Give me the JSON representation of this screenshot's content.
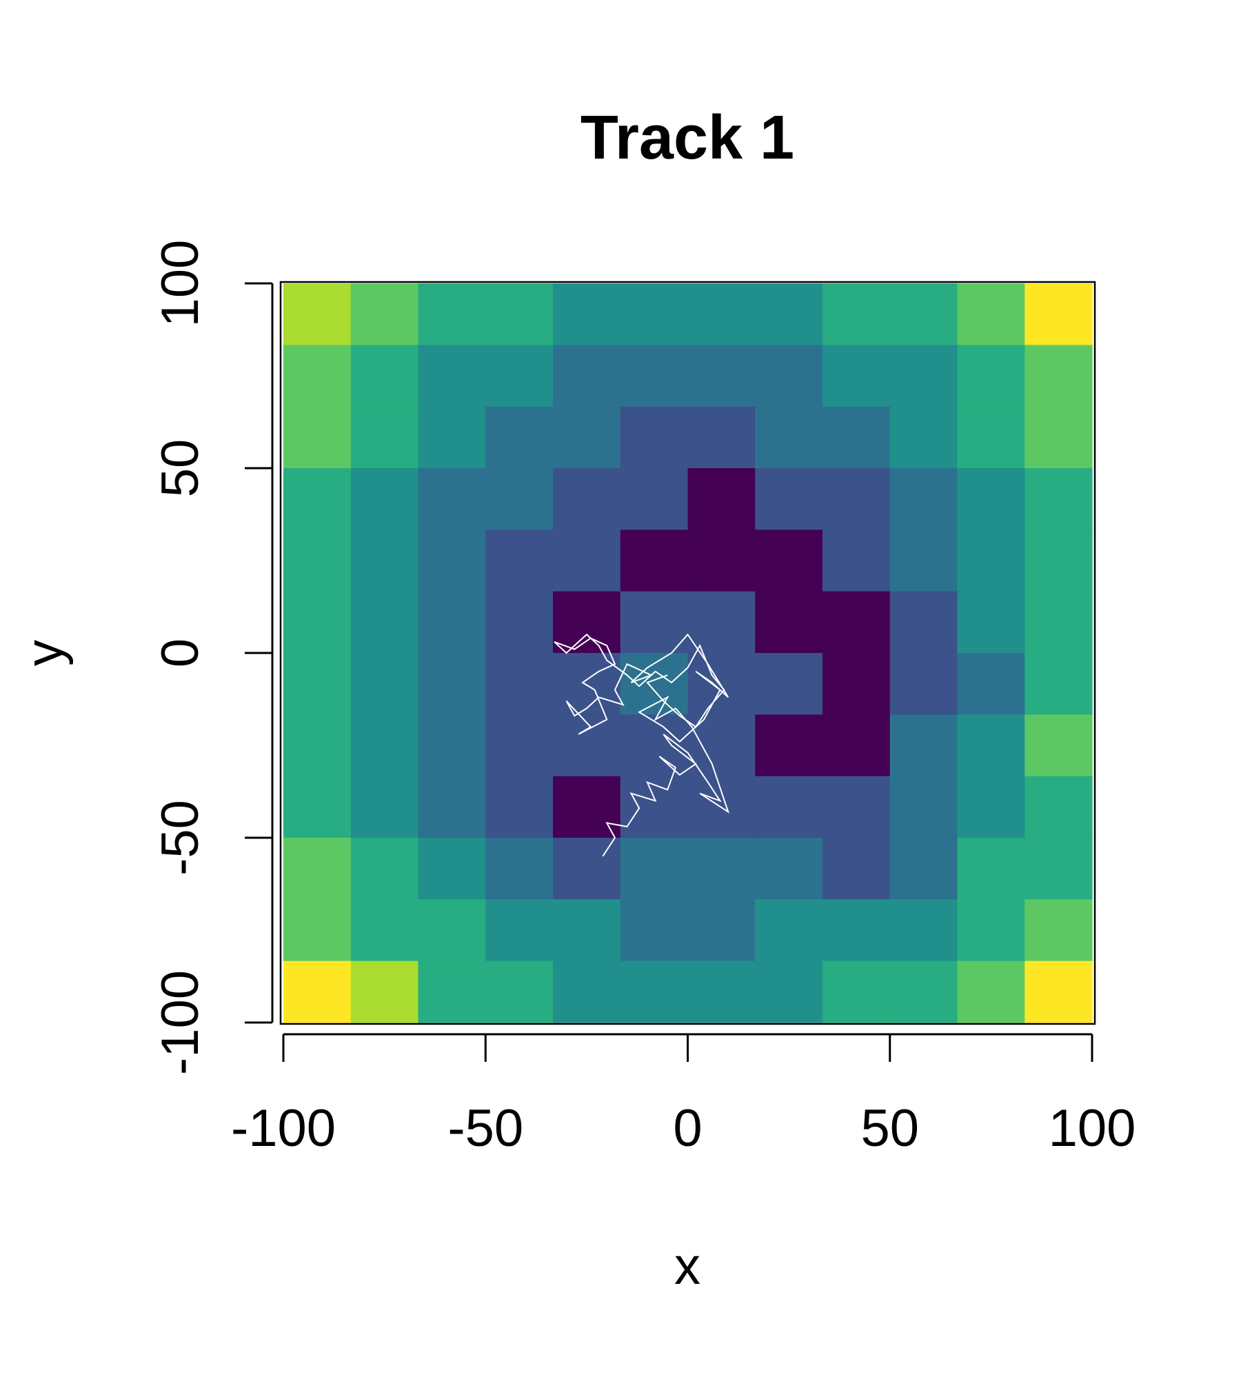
{
  "chart_data": {
    "type": "raster-track",
    "title": "Track 1",
    "x_label": "x",
    "y_label": "y",
    "xlim": [
      -100,
      100
    ],
    "ylim": [
      -100,
      100
    ],
    "xticks": [
      -100,
      -50,
      0,
      50,
      100
    ],
    "yticks": [
      -100,
      -50,
      0,
      50,
      100
    ],
    "colors": [
      "#440154",
      "#3b528b",
      "#2c728e",
      "#21908d",
      "#27ad81",
      "#5dc863",
      "#aadc32",
      "#fde725"
    ],
    "z": [
      [
        6,
        5,
        4,
        4,
        3,
        3,
        3,
        3,
        4,
        4,
        5,
        7
      ],
      [
        5,
        4,
        3,
        3,
        2,
        2,
        2,
        2,
        3,
        3,
        4,
        5
      ],
      [
        5,
        4,
        3,
        2,
        2,
        1,
        1,
        2,
        2,
        3,
        4,
        5
      ],
      [
        4,
        3,
        2,
        2,
        1,
        1,
        0,
        1,
        1,
        2,
        3,
        4
      ],
      [
        4,
        3,
        2,
        1,
        1,
        0,
        0,
        0,
        1,
        2,
        3,
        4
      ],
      [
        4,
        3,
        2,
        1,
        0,
        1,
        1,
        0,
        0,
        1,
        3,
        4
      ],
      [
        4,
        3,
        2,
        1,
        1,
        2,
        1,
        1,
        0,
        1,
        2,
        4
      ],
      [
        4,
        3,
        2,
        1,
        1,
        1,
        1,
        0,
        0,
        2,
        3,
        5
      ],
      [
        4,
        3,
        2,
        1,
        0,
        1,
        1,
        1,
        1,
        2,
        3,
        4
      ],
      [
        5,
        4,
        3,
        2,
        1,
        2,
        2,
        2,
        1,
        2,
        4,
        4
      ],
      [
        5,
        4,
        4,
        3,
        3,
        2,
        2,
        3,
        3,
        3,
        4,
        5
      ],
      [
        7,
        6,
        4,
        4,
        3,
        3,
        3,
        3,
        4,
        4,
        5,
        7
      ]
    ],
    "track": {
      "color": "#ffffff",
      "x": [
        -21,
        -18,
        -20,
        -15,
        -12,
        -14,
        -8,
        -10,
        -5,
        -3,
        -7,
        -2,
        2,
        -4,
        -6,
        0,
        5,
        8,
        3,
        10,
        6,
        1,
        -3,
        -8,
        -5,
        -12,
        -6,
        -2,
        4,
        8,
        2,
        6,
        10,
        5,
        0,
        -4,
        -10,
        -14,
        -9,
        -15,
        -18,
        -16,
        -22,
        -25,
        -28,
        -30,
        -24,
        -27,
        -20,
        -23,
        -26,
        -22,
        -18,
        -20,
        -24,
        -28,
        -33,
        -30,
        -25,
        -22,
        -20,
        -15,
        -12,
        -8,
        -4,
        0,
        3,
        6,
        9,
        5,
        2,
        -2,
        -6,
        -10,
        -5
      ],
      "y": [
        -55,
        -50,
        -46,
        -47,
        -42,
        -38,
        -40,
        -35,
        -37,
        -31,
        -28,
        -33,
        -30,
        -25,
        -22,
        -27,
        -35,
        -40,
        -38,
        -43,
        -30,
        -20,
        -15,
        -18,
        -12,
        -16,
        -20,
        -24,
        -18,
        -10,
        -5,
        -8,
        -12,
        -3,
        5,
        0,
        -4,
        -8,
        -6,
        -3,
        -10,
        -14,
        -12,
        -15,
        -17,
        -13,
        -20,
        -22,
        -18,
        -10,
        -8,
        -5,
        -3,
        2,
        4,
        1,
        3,
        0,
        5,
        2,
        -2,
        -6,
        -9,
        -5,
        -8,
        -4,
        2,
        -6,
        -10,
        -15,
        -20,
        -17,
        -13,
        -8,
        -6
      ]
    }
  }
}
